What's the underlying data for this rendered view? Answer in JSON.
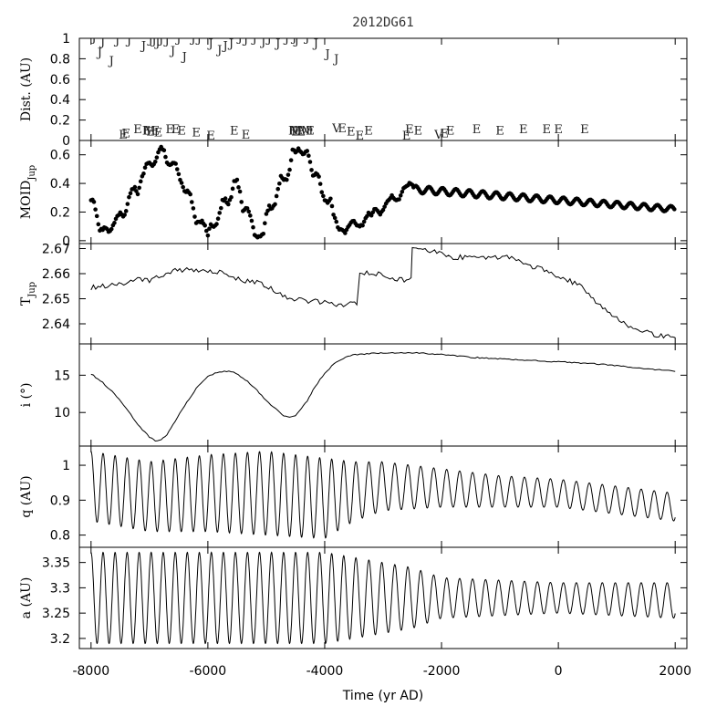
{
  "chart_data": {
    "type": "line",
    "title": "2012DG61",
    "xlabel": "Time (yr AD)",
    "xlim": [
      -8200,
      2200
    ],
    "xticks": [
      -8000,
      -6000,
      -4000,
      -2000,
      0,
      2000
    ],
    "xtick_labels": [
      "-8000",
      "-6000",
      "-4000",
      "-2000",
      "0",
      "2000"
    ],
    "panels": [
      {
        "id": "dist",
        "ylabel": "Dist. (AU)",
        "ylim": [
          0,
          1.0
        ],
        "yticks": [
          0,
          0.2,
          0.4,
          0.6,
          0.8,
          1
        ],
        "ytick_labels": [
          "0",
          "0.2",
          "0.4",
          "0.6",
          "0.8",
          "1"
        ],
        "markers": {
          "J": [
            [
              -7950,
              0.97
            ],
            [
              -7850,
              0.82
            ],
            [
              -7800,
              0.93
            ],
            [
              -7650,
              0.74
            ],
            [
              -7550,
              0.94
            ],
            [
              -7350,
              0.94
            ],
            [
              -7100,
              0.89
            ],
            [
              -6980,
              0.95
            ],
            [
              -6920,
              0.94
            ],
            [
              -6860,
              0.92
            ],
            [
              -6800,
              0.95
            ],
            [
              -6700,
              0.94
            ],
            [
              -6600,
              0.84
            ],
            [
              -6500,
              0.96
            ],
            [
              -6400,
              0.78
            ],
            [
              -6250,
              0.96
            ],
            [
              -6150,
              0.96
            ],
            [
              -5950,
              0.91
            ],
            [
              -5800,
              0.85
            ],
            [
              -5700,
              0.89
            ],
            [
              -5600,
              0.91
            ],
            [
              -5450,
              0.97
            ],
            [
              -5350,
              0.95
            ],
            [
              -5200,
              0.96
            ],
            [
              -5050,
              0.93
            ],
            [
              -4950,
              0.96
            ],
            [
              -4800,
              0.91
            ],
            [
              -4650,
              0.96
            ],
            [
              -4520,
              0.97
            ],
            [
              -4480,
              0.94
            ],
            [
              -4300,
              0.97
            ],
            [
              -4150,
              0.91
            ],
            [
              -3950,
              0.81
            ],
            [
              -3800,
              0.76
            ]
          ],
          "E": [
            [
              -7450,
              0.02
            ],
            [
              -7400,
              0.03
            ],
            [
              -7200,
              0.07
            ],
            [
              -7050,
              0.06
            ],
            [
              -6980,
              0.05
            ],
            [
              -6900,
              0.06
            ],
            [
              -6850,
              0.04
            ],
            [
              -6650,
              0.07
            ],
            [
              -6550,
              0.07
            ],
            [
              -6450,
              0.06
            ],
            [
              -6200,
              0.04
            ],
            [
              -5950,
              0.01
            ],
            [
              -5550,
              0.06
            ],
            [
              -5350,
              0.02
            ],
            [
              -4550,
              0.06
            ],
            [
              -4500,
              0.05
            ],
            [
              -4450,
              0.06
            ],
            [
              -4400,
              0.05
            ],
            [
              -4250,
              0.06
            ],
            [
              -3700,
              0.08
            ],
            [
              -3550,
              0.05
            ],
            [
              -3400,
              0.01
            ],
            [
              -3250,
              0.06
            ],
            [
              -2600,
              0.01
            ],
            [
              -2550,
              0.07
            ],
            [
              -2400,
              0.06
            ],
            [
              -1950,
              0.03
            ],
            [
              -1850,
              0.06
            ],
            [
              -1400,
              0.07
            ],
            [
              -1000,
              0.06
            ],
            [
              -600,
              0.07
            ],
            [
              -200,
              0.07
            ],
            [
              0,
              0.07
            ],
            [
              450,
              0.07
            ]
          ],
          "M": [
            [
              -7000,
              0.06
            ],
            [
              -4500,
              0.06
            ],
            [
              -4350,
              0.06
            ],
            [
              -4300,
              0.06
            ]
          ],
          "V": [
            [
              -3800,
              0.08
            ],
            [
              -2050,
              0.02
            ]
          ]
        }
      },
      {
        "id": "moid",
        "ylabel": "MOID",
        "ylabel_sub": "Jup",
        "ylim": [
          -0.02,
          0.7
        ],
        "yticks": [
          0,
          0.2,
          0.4,
          0.6
        ],
        "ytick_labels": [
          "0",
          "0.2",
          "0.4",
          "0.6"
        ],
        "style": "points",
        "x": [
          -8000,
          -7950,
          -7900,
          -7850,
          -7800,
          -7750,
          -7700,
          -7650,
          -7600,
          -7550,
          -7500,
          -7450,
          -7400,
          -7350,
          -7300,
          -7250,
          -7200,
          -7150,
          -7100,
          -7050,
          -7000,
          -6950,
          -6900,
          -6850,
          -6800,
          -6750,
          -6700,
          -6650,
          -6600,
          -6550,
          -6500,
          -6450,
          -6400,
          -6350,
          -6300,
          -6250,
          -6200,
          -6150,
          -6100,
          -6050,
          -6000,
          -5950,
          -5900,
          -5850,
          -5800,
          -5750,
          -5700,
          -5650,
          -5600,
          -5550,
          -5500,
          -5450,
          -5400,
          -5350,
          -5300,
          -5250,
          -5200,
          -5150,
          -5100,
          -5050,
          -5000,
          -4950,
          -4900,
          -4850,
          -4800,
          -4750,
          -4700,
          -4650,
          -4600,
          -4550,
          -4500,
          -4450,
          -4400,
          -4350,
          -4300,
          -4250,
          -4200,
          -4150,
          -4100,
          -4050,
          -4000,
          -3950,
          -3900,
          -3850,
          -3800,
          -3750,
          -3700,
          -3650,
          -3600,
          -3550,
          -3500,
          -3450,
          -3400,
          -3350,
          -3300,
          -3250,
          -3200,
          -3150,
          -3100,
          -3050,
          -3000,
          -2950,
          -2900,
          -2850,
          -2800,
          -2750,
          -2700,
          -2650,
          -2600,
          -2550,
          -2500
        ],
        "y": [
          0.29,
          0.27,
          0.17,
          0.07,
          0.08,
          0.09,
          0.06,
          0.08,
          0.13,
          0.18,
          0.19,
          0.17,
          0.2,
          0.3,
          0.36,
          0.37,
          0.33,
          0.42,
          0.47,
          0.54,
          0.55,
          0.53,
          0.55,
          0.62,
          0.66,
          0.63,
          0.55,
          0.53,
          0.55,
          0.54,
          0.46,
          0.4,
          0.34,
          0.35,
          0.33,
          0.22,
          0.12,
          0.13,
          0.14,
          0.1,
          0.04,
          0.12,
          0.1,
          0.12,
          0.19,
          0.28,
          0.29,
          0.25,
          0.31,
          0.41,
          0.42,
          0.34,
          0.2,
          0.23,
          0.21,
          0.14,
          0.04,
          0.02,
          0.03,
          0.05,
          0.18,
          0.24,
          0.22,
          0.26,
          0.36,
          0.45,
          0.43,
          0.43,
          0.49,
          0.63,
          0.62,
          0.64,
          0.61,
          0.61,
          0.63,
          0.55,
          0.45,
          0.47,
          0.45,
          0.34,
          0.28,
          0.27,
          0.29,
          0.18,
          0.13,
          0.07,
          0.08,
          0.06,
          0.09,
          0.13,
          0.14,
          0.11,
          0.1,
          0.11,
          0.16,
          0.19,
          0.18,
          0.22,
          0.21,
          0.19,
          0.22,
          0.26,
          0.29,
          0.31,
          0.29,
          0.28,
          0.31,
          0.36,
          0.38,
          0.4,
          0.39
        ]
      },
      {
        "id": "tjup",
        "ylabel": "T",
        "ylabel_sub": "Jup",
        "ylim": [
          2.632,
          2.672
        ],
        "yticks": [
          2.64,
          2.65,
          2.66,
          2.67
        ],
        "ytick_labels": [
          "2.64",
          "2.65",
          "2.66",
          "2.67"
        ],
        "x": [
          -8000,
          -7800,
          -7600,
          -7400,
          -7200,
          -7000,
          -6800,
          -6600,
          -6400,
          -6200,
          -6000,
          -5800,
          -5600,
          -5400,
          -5200,
          -5000,
          -4800,
          -4600,
          -4400,
          -4200,
          -4000,
          -3800,
          -3600,
          -3450,
          -3400,
          -3200,
          -3000,
          -2800,
          -2600,
          -2520,
          -2500,
          -2400,
          -2200,
          -2000,
          -1800,
          -1600,
          -1400,
          -1200,
          -1000,
          -800,
          -600,
          -400,
          -200,
          0,
          200,
          400,
          600,
          800,
          1000,
          1200,
          1400,
          1600,
          1800,
          2000
        ],
        "y": [
          2.6545,
          2.655,
          2.6555,
          2.656,
          2.6585,
          2.657,
          2.659,
          2.661,
          2.6615,
          2.661,
          2.661,
          2.6605,
          2.658,
          2.6575,
          2.6565,
          2.6555,
          2.652,
          2.65,
          2.6495,
          2.649,
          2.6485,
          2.6475,
          2.648,
          2.6485,
          2.6595,
          2.6605,
          2.6595,
          2.658,
          2.657,
          2.6575,
          2.671,
          2.6705,
          2.669,
          2.668,
          2.6665,
          2.6665,
          2.6665,
          2.666,
          2.6665,
          2.6665,
          2.6645,
          2.6625,
          2.661,
          2.6585,
          2.657,
          2.6545,
          2.6495,
          2.6455,
          2.6425,
          2.6395,
          2.6375,
          2.636,
          2.635,
          2.6345
        ]
      },
      {
        "id": "incl",
        "ylabel": "i (°)",
        "ylim": [
          5.5,
          19.2
        ],
        "yticks": [
          10,
          15
        ],
        "ytick_labels": [
          "10",
          "15"
        ],
        "x": [
          -8000,
          -7800,
          -7600,
          -7400,
          -7200,
          -7000,
          -6900,
          -6800,
          -6700,
          -6600,
          -6400,
          -6200,
          -6000,
          -5800,
          -5600,
          -5400,
          -5200,
          -5000,
          -4800,
          -4700,
          -4600,
          -4500,
          -4400,
          -4300,
          -4200,
          -4000,
          -3800,
          -3600,
          -3400,
          -3200,
          -3000,
          -2800,
          -2500,
          -2000,
          -1500,
          -1000,
          -500,
          0,
          500,
          1000,
          1500,
          2000
        ],
        "y": [
          15.2,
          14.0,
          12.5,
          10.6,
          8.4,
          6.7,
          6.2,
          6.3,
          7.0,
          8.3,
          10.9,
          13.2,
          14.8,
          15.5,
          15.5,
          14.7,
          13.3,
          11.6,
          10.2,
          9.5,
          9.3,
          9.6,
          10.5,
          11.6,
          13.0,
          15.3,
          16.8,
          17.6,
          17.8,
          17.9,
          18.0,
          18.0,
          18.0,
          17.8,
          17.4,
          17.2,
          17.0,
          16.8,
          16.6,
          16.3,
          15.9,
          15.5
        ]
      },
      {
        "id": "q",
        "ylabel": "q (AU)",
        "ylim": [
          0.765,
          1.055
        ],
        "yticks": [
          0.8,
          0.9,
          1
        ],
        "ytick_labels": [
          "0.8",
          "0.9",
          "1"
        ],
        "oscillation": {
          "period_before": 206,
          "period_after": 222,
          "break_at": -3500,
          "knots_x": [
            -8000,
            -7000,
            -6000,
            -5000,
            -4000,
            -3500,
            -3000,
            -2000,
            -1000,
            0,
            1000,
            2000
          ],
          "max": [
            1.04,
            1.01,
            1.03,
            1.04,
            1.02,
            1.01,
            1.01,
            0.99,
            0.97,
            0.96,
            0.94,
            0.92
          ],
          "min": [
            0.84,
            0.81,
            0.81,
            0.8,
            0.79,
            0.84,
            0.87,
            0.88,
            0.88,
            0.88,
            0.86,
            0.84
          ]
        }
      },
      {
        "id": "a",
        "ylabel": "a (AU)",
        "ylim": [
          3.18,
          3.38
        ],
        "yticks": [
          3.2,
          3.25,
          3.3,
          3.35
        ],
        "ytick_labels": [
          "3.2",
          "3.25",
          "3.3",
          "3.35"
        ],
        "oscillation": {
          "period_before": 206,
          "period_after": 222,
          "break_at": -3500,
          "knots_x": [
            -8000,
            -6000,
            -4000,
            -3500,
            -2500,
            -2000,
            0,
            2000
          ],
          "max": [
            3.37,
            3.37,
            3.37,
            3.36,
            3.34,
            3.32,
            3.31,
            3.31
          ],
          "min": [
            3.19,
            3.19,
            3.19,
            3.2,
            3.22,
            3.24,
            3.25,
            3.24
          ]
        }
      }
    ]
  }
}
